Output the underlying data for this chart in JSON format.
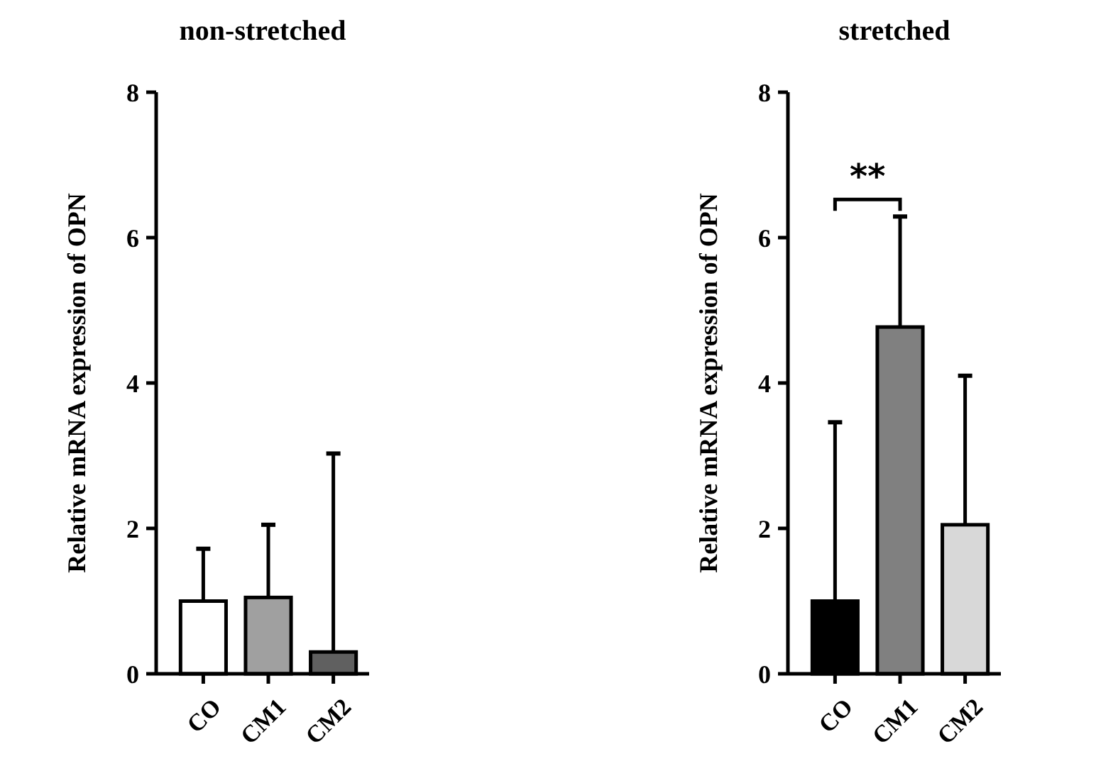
{
  "chart_data": [
    {
      "type": "bar",
      "title": "non-stretched",
      "ylabel": "Relative mRNA expression of OPN",
      "categories": [
        "CO",
        "CM1",
        "CM2"
      ],
      "values": [
        1.0,
        1.05,
        0.3
      ],
      "errors": [
        [
          1.0,
          1.72
        ],
        [
          1.05,
          2.05
        ],
        [
          0.3,
          3.03
        ]
      ],
      "colors": [
        "#ffffff",
        "#a0a0a0",
        "#606060"
      ],
      "ylim": [
        0,
        8
      ],
      "yticks": [
        0,
        2,
        4,
        6,
        8
      ],
      "grid": false
    },
    {
      "type": "bar",
      "title": "stretched",
      "ylabel": "Relative mRNA expression of OPN",
      "categories": [
        "CO",
        "CM1",
        "CM2"
      ],
      "values": [
        1.0,
        4.77,
        2.05
      ],
      "errors": [
        [
          1.0,
          3.46
        ],
        [
          4.77,
          6.29
        ],
        [
          2.05,
          4.1
        ]
      ],
      "colors": [
        "#000000",
        "#808080",
        "#d8d8d8"
      ],
      "ylim": [
        0,
        8
      ],
      "yticks": [
        0,
        2,
        4,
        6,
        8
      ],
      "grid": false,
      "annotations": [
        "**"
      ]
    }
  ]
}
